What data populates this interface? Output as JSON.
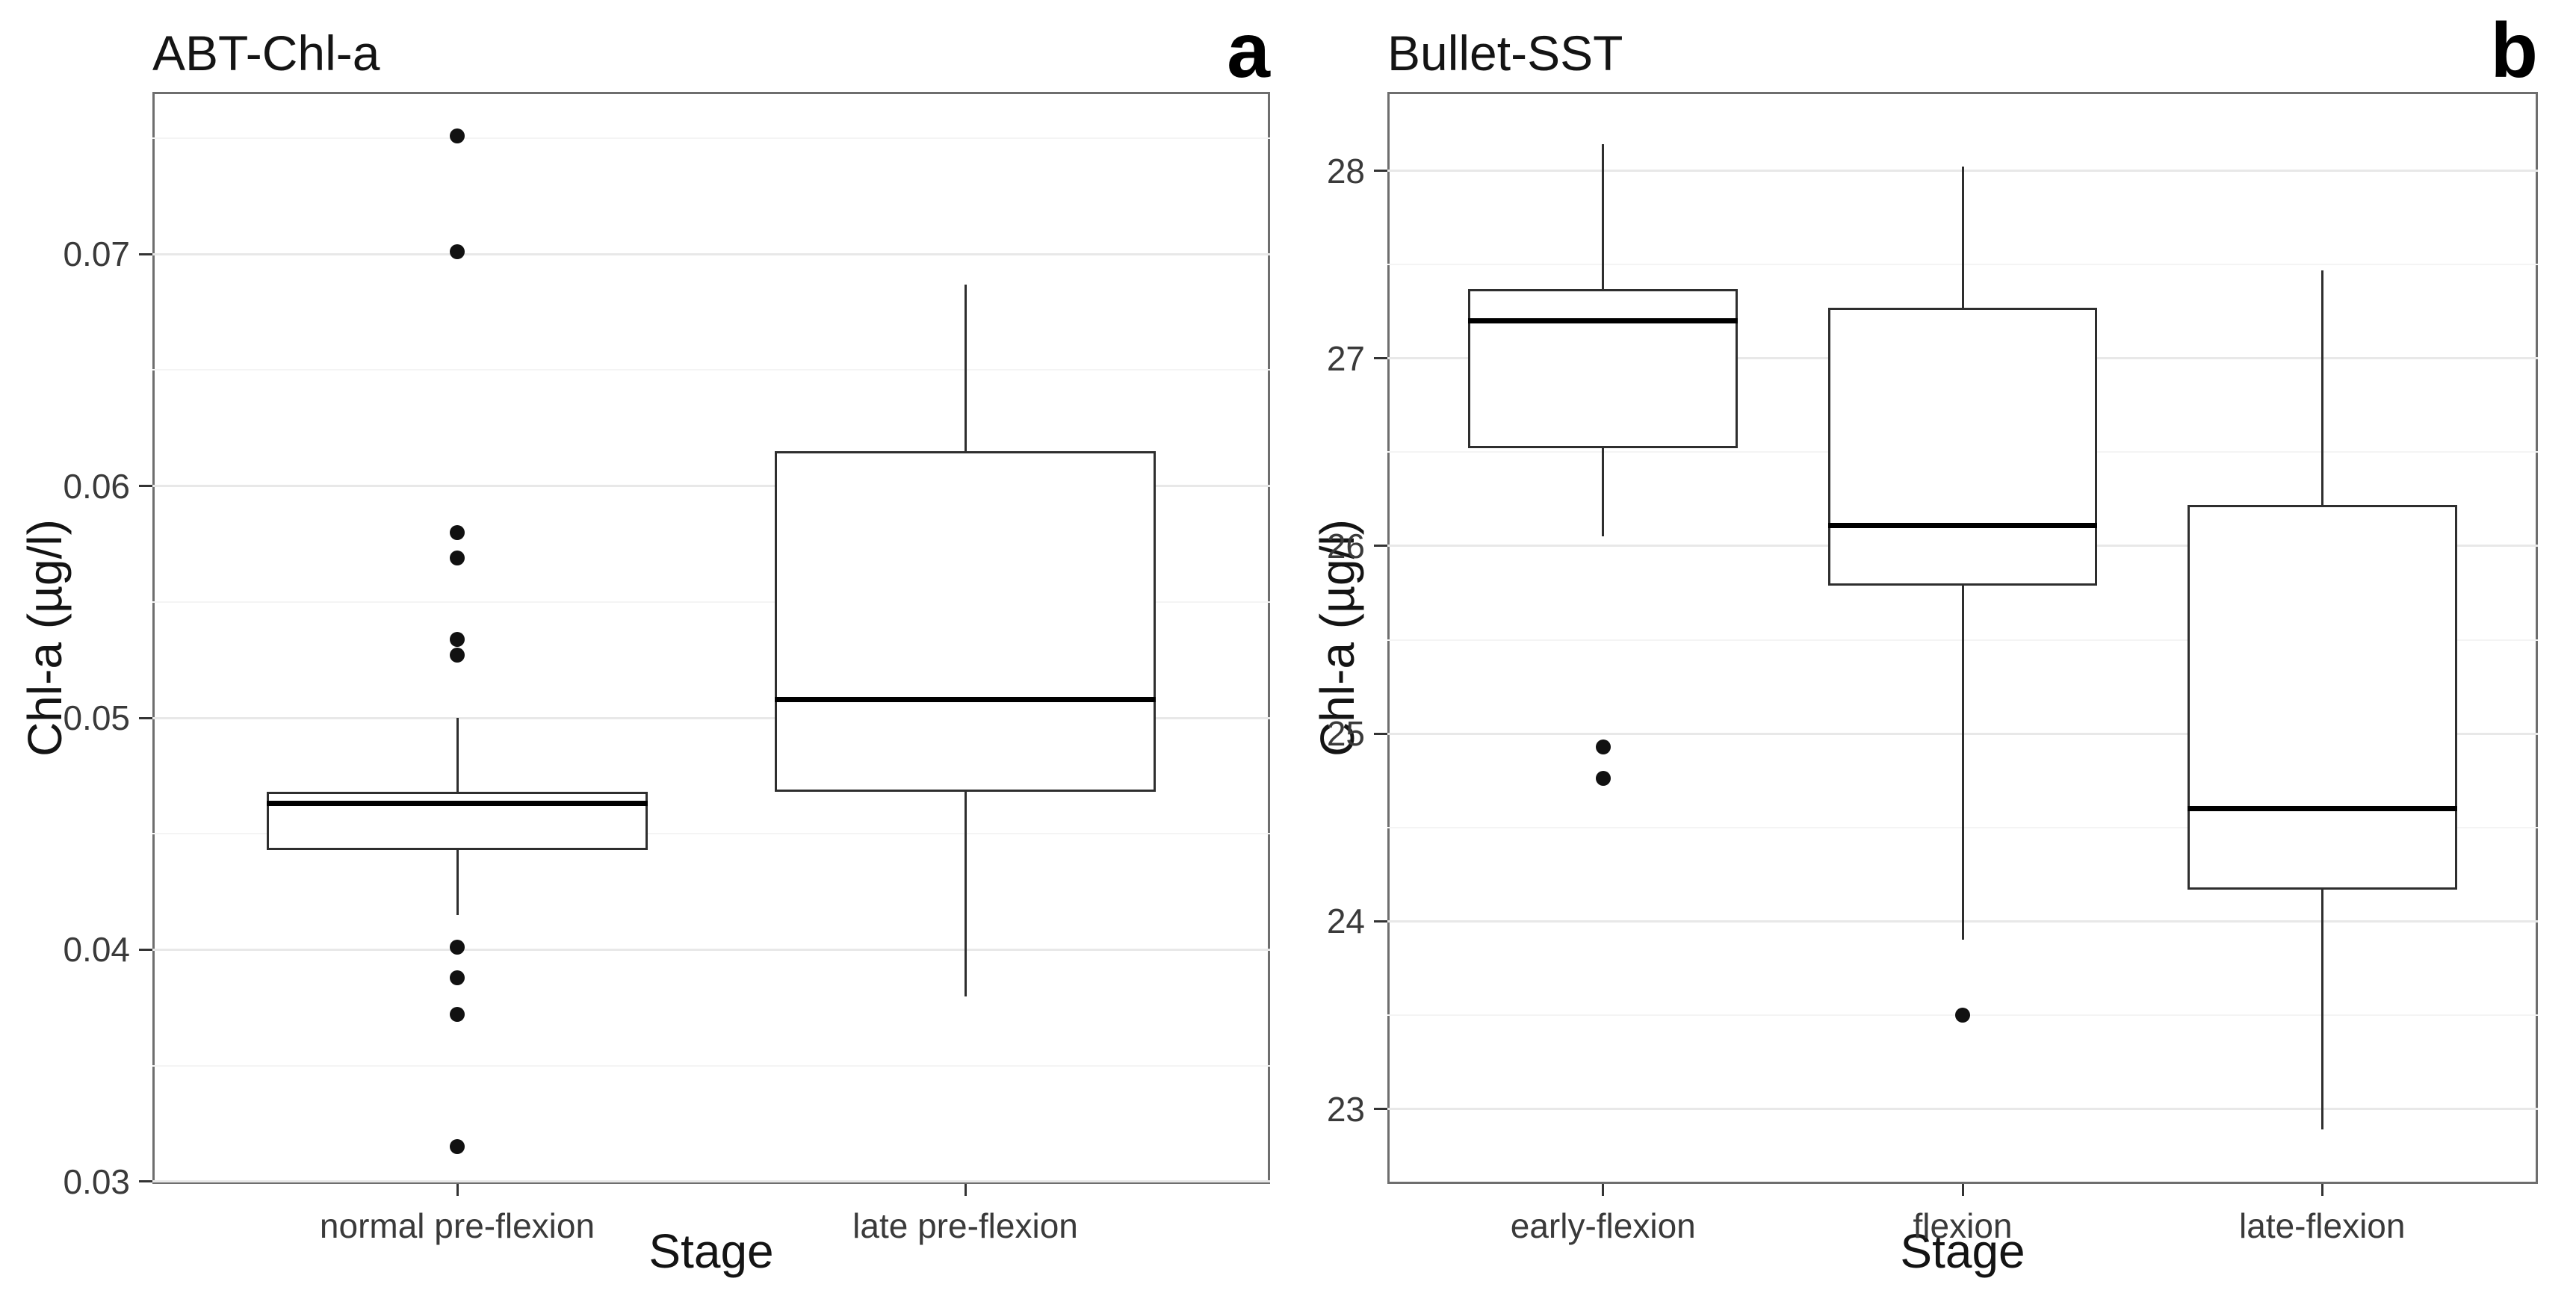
{
  "figure_type": "two-panel boxplot figure",
  "colors": {
    "grid_major": "#e8e8e8",
    "grid_minor": "#f4f4f4",
    "panel_border": "#6e6e6e",
    "box_border": "#2e2e2e",
    "median": "#000000",
    "outlier": "#111111",
    "tick": "#333333",
    "tick_text": "#3a3a3a",
    "title_text": "#141414",
    "background": "#ffffff"
  },
  "chart_data": [
    {
      "type": "boxplot",
      "panel_label": "a",
      "title": "ABT-Chl-a",
      "xlabel": "Stage",
      "ylabel": "Chl-a (µg/l)",
      "ylim": [
        0.0299,
        0.077
      ],
      "yticks": [
        0.03,
        0.04,
        0.05,
        0.06,
        0.07
      ],
      "ytick_labels": [
        "0.03",
        "0.04",
        "0.05",
        "0.06",
        "0.07"
      ],
      "yticks_minor": [
        0.035,
        0.045,
        0.055,
        0.065,
        0.075
      ],
      "grid": "major+minor horizontal",
      "legend": "none",
      "categories": [
        "normal pre-flexion",
        "late pre-flexion"
      ],
      "series": [
        {
          "category": "normal pre-flexion",
          "whisker_low": 0.0415,
          "q1": 0.0443,
          "median": 0.0463,
          "q3": 0.0468,
          "whisker_high": 0.05,
          "outliers": [
            0.0751,
            0.0701,
            0.058,
            0.0569,
            0.0534,
            0.0527,
            0.0401,
            0.0388,
            0.0372,
            0.0315
          ]
        },
        {
          "category": "late pre-flexion",
          "whisker_low": 0.038,
          "q1": 0.0468,
          "median": 0.0508,
          "q3": 0.0615,
          "whisker_high": 0.0687,
          "outliers": []
        }
      ]
    },
    {
      "type": "boxplot",
      "panel_label": "b",
      "title": "Bullet-SST",
      "xlabel": "Stage",
      "ylabel": "Chl-a (µg/l)",
      "ylim": [
        22.6,
        28.42
      ],
      "yticks": [
        23,
        24,
        25,
        26,
        27,
        28
      ],
      "ytick_labels": [
        "23",
        "24",
        "25",
        "26",
        "27",
        "28"
      ],
      "yticks_minor": [
        23.5,
        24.5,
        25.5,
        26.5,
        27.5
      ],
      "grid": "major+minor horizontal",
      "legend": "none",
      "categories": [
        "early-flexion",
        "flexion",
        "late-flexion"
      ],
      "series": [
        {
          "category": "early-flexion",
          "whisker_low": 26.05,
          "q1": 26.52,
          "median": 27.2,
          "q3": 27.37,
          "whisker_high": 28.14,
          "outliers": [
            24.93,
            24.76
          ]
        },
        {
          "category": "flexion",
          "whisker_low": 23.9,
          "q1": 25.79,
          "median": 26.11,
          "q3": 27.27,
          "whisker_high": 28.02,
          "outliers": [
            23.5
          ]
        },
        {
          "category": "late-flexion",
          "whisker_low": 22.89,
          "q1": 24.17,
          "median": 24.6,
          "q3": 26.22,
          "whisker_high": 27.47,
          "outliers": []
        }
      ]
    }
  ]
}
